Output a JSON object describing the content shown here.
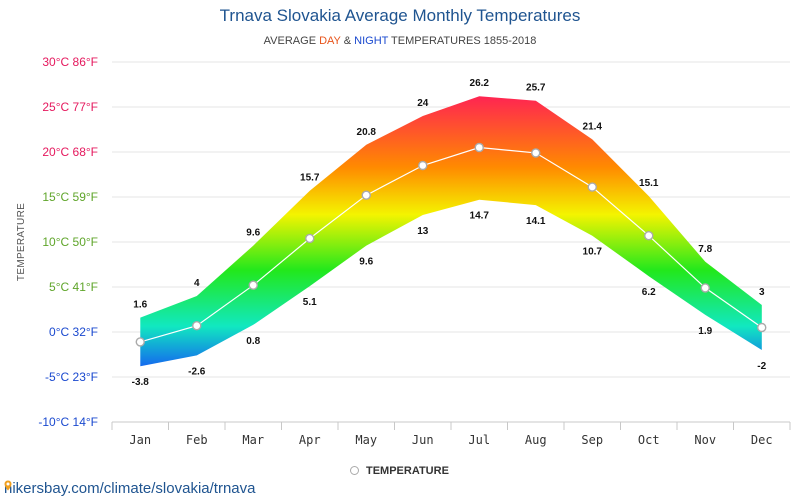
{
  "header": {
    "title": "Trnava Slovakia Average Monthly Temperatures",
    "subtitle_prefix": "AVERAGE ",
    "subtitle_day": "DAY",
    "subtitle_amp": " & ",
    "subtitle_night": "NIGHT",
    "subtitle_suffix": " TEMPERATURES 1855-2018"
  },
  "legend": {
    "label": "TEMPERATURE"
  },
  "footer": {
    "url": "hikersbay.com/climate/slovakia/trnava"
  },
  "chart_data": {
    "type": "area",
    "title": "Trnava Slovakia Average Monthly Temperatures",
    "ylabel": "TEMPERATURE",
    "ylim": [
      -10,
      30
    ],
    "grid": true,
    "legend_position": "bottom-center",
    "categories": [
      "Jan",
      "Feb",
      "Mar",
      "Apr",
      "May",
      "Jun",
      "Jul",
      "Aug",
      "Sep",
      "Oct",
      "Nov",
      "Dec"
    ],
    "y_ticks": [
      {
        "value": 30,
        "label": "30°C 86°F",
        "color": "#e5195e"
      },
      {
        "value": 25,
        "label": "25°C 77°F",
        "color": "#e5195e"
      },
      {
        "value": 20,
        "label": "20°C 68°F",
        "color": "#e5195e"
      },
      {
        "value": 15,
        "label": "15°C 59°F",
        "color": "#5fa52a"
      },
      {
        "value": 10,
        "label": "10°C 50°F",
        "color": "#5fa52a"
      },
      {
        "value": 5,
        "label": "5°C 41°F",
        "color": "#5fa52a"
      },
      {
        "value": 0,
        "label": "0°C 32°F",
        "color": "#1a49cf"
      },
      {
        "value": -5,
        "label": "-5°C 23°F",
        "color": "#1a49cf"
      },
      {
        "value": -10,
        "label": "-10°C 14°F",
        "color": "#1a49cf"
      }
    ],
    "series": [
      {
        "name": "day",
        "values": [
          1.6,
          4,
          9.6,
          15.7,
          20.8,
          24,
          26.2,
          25.7,
          21.4,
          15.1,
          7.8,
          3
        ],
        "labels": [
          "1.6",
          "4",
          "9.6",
          "15.7",
          "20.8",
          "24",
          "26.2",
          "25.7",
          "21.4",
          "15.1",
          "7.8",
          "3"
        ]
      },
      {
        "name": "night",
        "values": [
          -3.8,
          -2.6,
          0.8,
          5.1,
          9.6,
          13,
          14.7,
          14.1,
          10.7,
          6.2,
          1.9,
          -2
        ],
        "labels": [
          "-3.8",
          "-2.6",
          "0.8",
          "5.1",
          "9.6",
          "13",
          "14.7",
          "14.1",
          "10.7",
          "6.2",
          "1.9",
          "-2"
        ]
      },
      {
        "name": "TEMPERATURE",
        "values": [
          -1.1,
          0.7,
          5.2,
          10.4,
          15.2,
          18.5,
          20.5,
          19.9,
          16.1,
          10.7,
          4.9,
          0.5
        ]
      }
    ],
    "colors": {
      "hot": "#ff1a5a",
      "warm": "#ff8a00",
      "mild": "#f4f400",
      "cool": "#22e81c",
      "cold": "#11e8c0",
      "freezing": "#1464f0",
      "line": "#ffffff",
      "marker_stroke": "#aaaaaa",
      "grid": "#e6e6e6",
      "axis": "#c8c8c8"
    }
  }
}
